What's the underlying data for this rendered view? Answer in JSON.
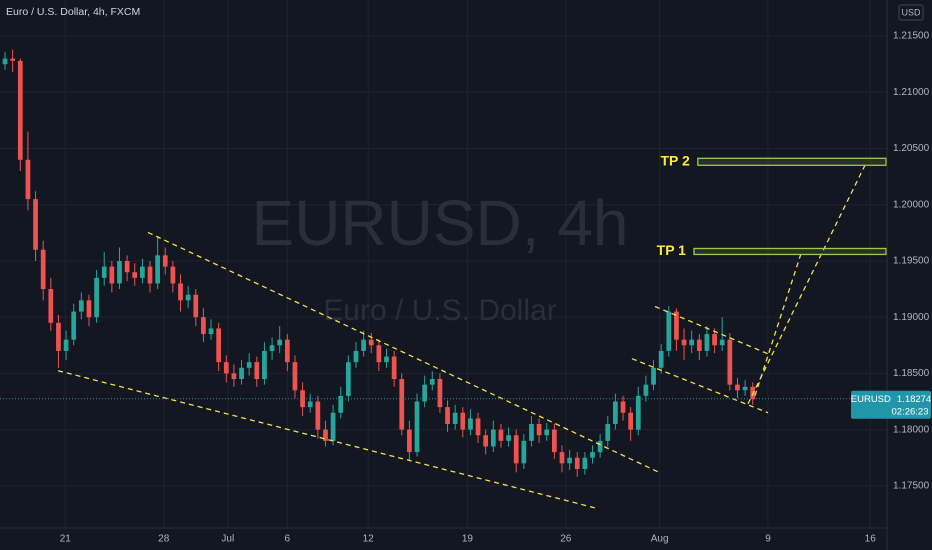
{
  "chart_data": {
    "type": "candlestick",
    "title": "Euro / U.S. Dollar, 4h, FXCM",
    "currency": "USD",
    "watermark": "EURUSD, 4h",
    "watermark_subtitle": "Euro / U.S. Dollar",
    "up_color": "#26a69a",
    "down_color": "#ef5350",
    "candles": [
      [
        1.2125,
        1.2136,
        1.212,
        1.213
      ],
      [
        1.213,
        1.2138,
        1.2118,
        1.2128
      ],
      [
        1.2128,
        1.213,
        1.203,
        1.204
      ],
      [
        1.204,
        1.2065,
        1.1995,
        1.2005
      ],
      [
        1.2005,
        1.2012,
        1.195,
        1.196
      ],
      [
        1.196,
        1.1968,
        1.1915,
        1.1925
      ],
      [
        1.1925,
        1.1935,
        1.1888,
        1.1895
      ],
      [
        1.1895,
        1.1902,
        1.1855,
        1.187
      ],
      [
        1.187,
        1.1888,
        1.1862,
        1.188
      ],
      [
        1.188,
        1.1912,
        1.1875,
        1.1905
      ],
      [
        1.1905,
        1.1922,
        1.1898,
        1.1915
      ],
      [
        1.1915,
        1.192,
        1.1892,
        1.19
      ],
      [
        1.19,
        1.1942,
        1.1895,
        1.1935
      ],
      [
        1.1935,
        1.1958,
        1.1928,
        1.1945
      ],
      [
        1.1945,
        1.195,
        1.1922,
        1.193
      ],
      [
        1.193,
        1.1962,
        1.1925,
        1.195
      ],
      [
        1.195,
        1.1955,
        1.1932,
        1.194
      ],
      [
        1.194,
        1.1948,
        1.1928,
        1.1935
      ],
      [
        1.1935,
        1.1952,
        1.193,
        1.1945
      ],
      [
        1.1945,
        1.195,
        1.1922,
        1.193
      ],
      [
        1.193,
        1.1972,
        1.1925,
        1.1955
      ],
      [
        1.1955,
        1.1962,
        1.1938,
        1.1945
      ],
      [
        1.1945,
        1.195,
        1.1922,
        1.193
      ],
      [
        1.193,
        1.1938,
        1.1905,
        1.1915
      ],
      [
        1.1915,
        1.1928,
        1.1908,
        1.192
      ],
      [
        1.192,
        1.1925,
        1.1892,
        1.19
      ],
      [
        1.19,
        1.1908,
        1.1878,
        1.1885
      ],
      [
        1.1885,
        1.1898,
        1.188,
        1.189
      ],
      [
        1.189,
        1.1895,
        1.1852,
        1.186
      ],
      [
        1.186,
        1.1866,
        1.1842,
        1.185
      ],
      [
        1.185,
        1.1858,
        1.1838,
        1.1845
      ],
      [
        1.1845,
        1.1862,
        1.184,
        1.1855
      ],
      [
        1.1855,
        1.1868,
        1.1848,
        1.186
      ],
      [
        1.186,
        1.1865,
        1.1838,
        1.1845
      ],
      [
        1.1845,
        1.1878,
        1.184,
        1.187
      ],
      [
        1.187,
        1.1882,
        1.1862,
        1.1875
      ],
      [
        1.1875,
        1.1892,
        1.1868,
        1.188
      ],
      [
        1.188,
        1.1885,
        1.1852,
        1.186
      ],
      [
        1.186,
        1.1866,
        1.1828,
        1.1835
      ],
      [
        1.1835,
        1.1842,
        1.1812,
        1.182
      ],
      [
        1.182,
        1.1832,
        1.1815,
        1.1825
      ],
      [
        1.1825,
        1.183,
        1.1792,
        1.18
      ],
      [
        1.18,
        1.1808,
        1.1785,
        1.179
      ],
      [
        1.179,
        1.1822,
        1.1786,
        1.1815
      ],
      [
        1.1815,
        1.1838,
        1.181,
        1.183
      ],
      [
        1.183,
        1.1866,
        1.1825,
        1.186
      ],
      [
        1.186,
        1.1878,
        1.1855,
        1.187
      ],
      [
        1.187,
        1.1888,
        1.1865,
        1.188
      ],
      [
        1.188,
        1.1886,
        1.1868,
        1.1875
      ],
      [
        1.1875,
        1.188,
        1.1852,
        1.186
      ],
      [
        1.186,
        1.1872,
        1.1855,
        1.1865
      ],
      [
        1.1865,
        1.187,
        1.1838,
        1.1845
      ],
      [
        1.1845,
        1.185,
        1.1795,
        1.18
      ],
      [
        1.18,
        1.1808,
        1.1772,
        1.178
      ],
      [
        1.178,
        1.1832,
        1.1776,
        1.1825
      ],
      [
        1.1825,
        1.1848,
        1.182,
        1.184
      ],
      [
        1.184,
        1.1852,
        1.1835,
        1.1845
      ],
      [
        1.1845,
        1.185,
        1.1815,
        1.182
      ],
      [
        1.182,
        1.1826,
        1.1798,
        1.1805
      ],
      [
        1.1805,
        1.1822,
        1.18,
        1.1815
      ],
      [
        1.1815,
        1.182,
        1.1793,
        1.18
      ],
      [
        1.18,
        1.1818,
        1.1795,
        1.181
      ],
      [
        1.181,
        1.1815,
        1.1788,
        1.1795
      ],
      [
        1.1795,
        1.18,
        1.1778,
        1.1785
      ],
      [
        1.1785,
        1.1808,
        1.178,
        1.18
      ],
      [
        1.18,
        1.1805,
        1.1784,
        1.179
      ],
      [
        1.179,
        1.1802,
        1.1785,
        1.1795
      ],
      [
        1.1795,
        1.18,
        1.1762,
        1.177
      ],
      [
        1.177,
        1.1796,
        1.1765,
        1.179
      ],
      [
        1.179,
        1.1812,
        1.1785,
        1.1805
      ],
      [
        1.1805,
        1.181,
        1.1788,
        1.1795
      ],
      [
        1.1795,
        1.1806,
        1.179,
        1.18
      ],
      [
        1.18,
        1.1805,
        1.1774,
        1.178
      ],
      [
        1.178,
        1.1786,
        1.1762,
        1.177
      ],
      [
        1.177,
        1.1782,
        1.1764,
        1.1775
      ],
      [
        1.1775,
        1.178,
        1.1758,
        1.1765
      ],
      [
        1.1765,
        1.178,
        1.176,
        1.1775
      ],
      [
        1.1775,
        1.1786,
        1.177,
        1.178
      ],
      [
        1.178,
        1.1796,
        1.1775,
        1.179
      ],
      [
        1.179,
        1.1812,
        1.1785,
        1.1805
      ],
      [
        1.1805,
        1.1832,
        1.18,
        1.1825
      ],
      [
        1.1825,
        1.183,
        1.1808,
        1.1815
      ],
      [
        1.1815,
        1.182,
        1.179,
        1.18
      ],
      [
        1.18,
        1.1838,
        1.1795,
        1.183
      ],
      [
        1.183,
        1.1848,
        1.1825,
        1.184
      ],
      [
        1.184,
        1.1862,
        1.1835,
        1.1855
      ],
      [
        1.1855,
        1.1876,
        1.185,
        1.187
      ],
      [
        1.187,
        1.191,
        1.1865,
        1.1905
      ],
      [
        1.1905,
        1.1908,
        1.187,
        1.188
      ],
      [
        1.188,
        1.189,
        1.1862,
        1.1875
      ],
      [
        1.1875,
        1.1888,
        1.1868,
        1.188
      ],
      [
        1.188,
        1.1885,
        1.1862,
        1.187
      ],
      [
        1.187,
        1.1892,
        1.1865,
        1.1885
      ],
      [
        1.1885,
        1.189,
        1.1868,
        1.1875
      ],
      [
        1.1875,
        1.19,
        1.187,
        1.188
      ],
      [
        1.188,
        1.1886,
        1.1835,
        1.184
      ],
      [
        1.184,
        1.1846,
        1.1828,
        1.1835
      ],
      [
        1.1835,
        1.1844,
        1.183,
        1.1838
      ],
      [
        1.1838,
        1.1842,
        1.1822,
        1.1827
      ]
    ],
    "xlim": [
      -0.66,
      115.6
    ],
    "xticks": [
      {
        "value": 7.9,
        "label": "21"
      },
      {
        "value": 20.8,
        "label": "28"
      },
      {
        "value": 29.2,
        "label": "Jul"
      },
      {
        "value": 37.0,
        "label": "6"
      },
      {
        "value": 47.6,
        "label": "12"
      },
      {
        "value": 60.6,
        "label": "19"
      },
      {
        "value": 73.5,
        "label": "26"
      },
      {
        "value": 85.8,
        "label": "Aug"
      },
      {
        "value": 100.0,
        "label": "9"
      },
      {
        "value": 113.4,
        "label": "16"
      }
    ],
    "ylim": [
      1.17125,
      1.21821
    ],
    "yticks": [
      {
        "value": 1.175,
        "label": "1.17500"
      },
      {
        "value": 1.18,
        "label": "1.18000"
      },
      {
        "value": 1.185,
        "label": "1.18500"
      },
      {
        "value": 1.19,
        "label": "1.19000"
      },
      {
        "value": 1.195,
        "label": "1.19500"
      },
      {
        "value": 1.2,
        "label": "1.20000"
      },
      {
        "value": 1.205,
        "label": "1.20500"
      },
      {
        "value": 1.21,
        "label": "1.21000"
      },
      {
        "value": 1.215,
        "label": "1.21500"
      }
    ],
    "grid": true,
    "last_price": {
      "symbol": "EURUSD",
      "value": 1.18274,
      "countdown": "02:26:23",
      "color": "#2196a8"
    },
    "trendline_color": "#f5e04a",
    "trendlines": [
      [
        [
          18.74,
          1.19754
        ],
        [
          85.85,
          1.17616
        ]
      ],
      [
        [
          6.95,
          1.18524
        ],
        [
          77.33,
          1.17304
        ]
      ],
      [
        [
          85.19,
          1.19095
        ],
        [
          100.26,
          1.18667
        ]
      ],
      [
        [
          82.17,
          1.18631
        ],
        [
          100.0,
          1.1815
        ]
      ],
      [
        [
          97.38,
          1.1823
        ],
        [
          112.84,
          1.20369
        ]
      ],
      [
        [
          98.3,
          1.18302
        ],
        [
          104.46,
          1.19593
        ]
      ]
    ],
    "target_color": "#9ccc45",
    "target_label_color": "#ffeb3b",
    "targets": [
      {
        "label": "TP 1",
        "start": 90.3,
        "top": 1.19611,
        "bottom": 1.19558
      },
      {
        "label": "TP 2",
        "start": 90.8,
        "top": 1.20413,
        "bottom": 1.20351
      }
    ]
  }
}
